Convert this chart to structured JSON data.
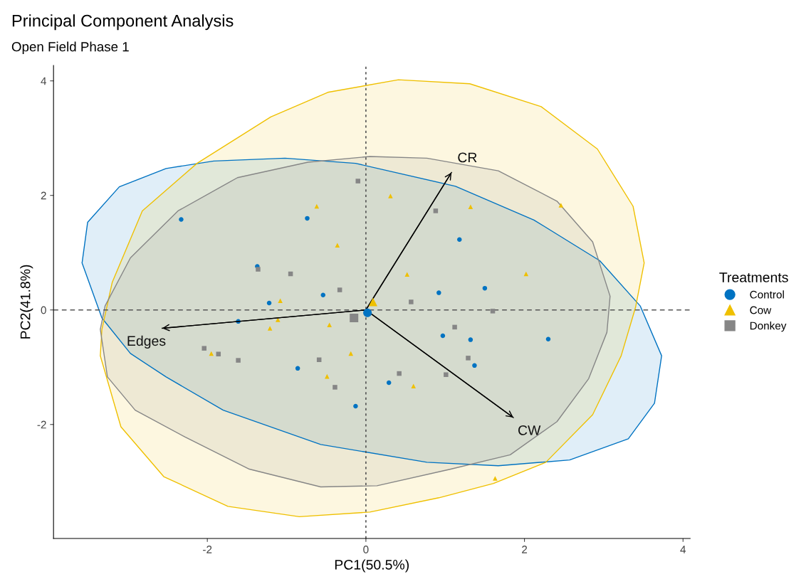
{
  "chart_data": {
    "type": "scatter",
    "title": "Principal Component Analysis",
    "subtitle": "Open Field Phase 1",
    "xlabel": "PC1(50.5%)",
    "ylabel": "PC2(41.8%)",
    "legend_title": "Treatments",
    "legend": "right",
    "grid": false,
    "xlim": [
      -3.94,
      4.09
    ],
    "xticks": [
      -2,
      0,
      2,
      4
    ],
    "ylim": [
      -3.99,
      4.27
    ],
    "yticks": [
      -2,
      0,
      2,
      4
    ],
    "ref_lines": [
      {
        "axis": "x",
        "value": 0,
        "line_style": "dotted",
        "color": "#555555"
      },
      {
        "axis": "y",
        "value": 0,
        "line_style": "dashed",
        "color": "#555555"
      }
    ],
    "series": [
      {
        "type": "area",
        "color": "#0073c2",
        "x": [
          -3.58,
          -3.51,
          -3.11,
          -2.52,
          -1.92,
          -1.02,
          -0.13,
          1.13,
          2.12,
          2.95,
          3.46,
          3.73,
          3.64,
          3.31,
          2.57,
          1.67,
          0.77,
          -0.57,
          -1.8,
          -2.52,
          -2.97,
          -3.33,
          -3.58
        ],
        "values": [
          0.82,
          1.53,
          2.15,
          2.47,
          2.6,
          2.65,
          2.56,
          2.16,
          1.57,
          0.86,
          0.07,
          -0.8,
          -1.63,
          -2.25,
          -2.62,
          -2.72,
          -2.66,
          -2.35,
          -1.75,
          -1.17,
          -0.76,
          -0.14,
          0.82
        ]
      },
      {
        "type": "area",
        "color": "#efc000",
        "x": [
          -3.35,
          -3.33,
          -3.2,
          -2.82,
          -2.13,
          -1.2,
          -0.48,
          0.41,
          1.31,
          2.21,
          2.92,
          3.37,
          3.51,
          3.4,
          3.22,
          2.86,
          2.27,
          1.61,
          0.92,
          0.05,
          -0.84,
          -1.74,
          -2.55,
          -3.09,
          -3.35
        ],
        "values": [
          -0.8,
          -0.34,
          0.48,
          1.73,
          2.56,
          3.37,
          3.8,
          4.02,
          3.95,
          3.55,
          2.81,
          1.81,
          0.82,
          0.04,
          -0.8,
          -1.83,
          -2.66,
          -3.03,
          -3.28,
          -3.53,
          -3.61,
          -3.43,
          -2.91,
          -2.04,
          -0.8
        ]
      },
      {
        "type": "area",
        "color": "#868686",
        "x": [
          -3.35,
          -3.29,
          -2.97,
          -2.37,
          -1.62,
          -0.73,
          0.05,
          0.77,
          1.67,
          2.41,
          2.86,
          3.08,
          3.04,
          2.81,
          2.41,
          1.82,
          1.07,
          0.14,
          -0.57,
          -1.47,
          -2.28,
          -2.91,
          -3.26,
          -3.35
        ],
        "values": [
          -0.34,
          0.07,
          0.91,
          1.73,
          2.31,
          2.58,
          2.68,
          2.65,
          2.43,
          1.9,
          1.19,
          0.24,
          -0.39,
          -1.2,
          -1.95,
          -2.53,
          -2.78,
          -3.07,
          -3.09,
          -2.78,
          -2.22,
          -1.75,
          -1.17,
          -0.34
        ]
      },
      {
        "name": "Control",
        "color": "#0073c2",
        "marker": "circle",
        "x": [
          -2.33,
          -0.74,
          -1.37,
          -1.22,
          -0.54,
          -1.61,
          -0.86,
          -0.13,
          0.29,
          1.18,
          0.92,
          1.5,
          0.97,
          1.32,
          1.37,
          2.3
        ],
        "values": [
          1.58,
          1.6,
          0.76,
          0.12,
          0.26,
          -0.2,
          -1.02,
          -1.68,
          -1.27,
          1.23,
          0.3,
          0.38,
          -0.45,
          -0.52,
          -0.97,
          -0.51
        ]
      },
      {
        "name": "Cow",
        "color": "#efc000",
        "marker": "triangle",
        "x": [
          -0.62,
          -0.36,
          0.31,
          1.32,
          2.46,
          0.52,
          2.02,
          -1.08,
          -1.11,
          -1.21,
          -0.46,
          -1.95,
          -0.19,
          -0.49,
          0.6,
          1.63
        ],
        "values": [
          1.81,
          1.13,
          1.99,
          1.8,
          1.83,
          0.62,
          0.63,
          0.16,
          -0.17,
          -0.32,
          -0.26,
          -0.76,
          -0.76,
          -1.16,
          -1.33,
          -2.94
        ]
      },
      {
        "name": "Donkey",
        "color": "#868686",
        "marker": "square",
        "x": [
          -0.1,
          -1.36,
          -0.95,
          -0.33,
          -2.04,
          -1.86,
          -1.61,
          -0.59,
          -0.39,
          0.88,
          0.57,
          1.12,
          1.6,
          1.29,
          0.42,
          1.01
        ],
        "values": [
          2.25,
          0.71,
          0.63,
          0.35,
          -0.67,
          -0.77,
          -0.88,
          -0.87,
          -1.35,
          1.73,
          0.14,
          -0.3,
          -0.02,
          -0.84,
          -1.11,
          -1.13
        ]
      },
      {
        "type": "line",
        "name": "Edges",
        "color": "#000000",
        "x": [
          0,
          -2.57
        ],
        "values": [
          0,
          -0.32
        ]
      },
      {
        "type": "line",
        "name": "CR",
        "color": "#000000",
        "x": [
          0,
          1.08
        ],
        "values": [
          0,
          2.4
        ]
      },
      {
        "type": "line",
        "name": "CW",
        "color": "#000000",
        "x": [
          0,
          1.86
        ],
        "values": [
          0,
          -1.88
        ]
      },
      {
        "color": "#868686",
        "marker": "square",
        "x": [
          -0.15
        ],
        "values": [
          -0.14
        ]
      },
      {
        "color": "#efc000",
        "marker": "triangle",
        "x": [
          0.09
        ],
        "values": [
          0.14
        ]
      },
      {
        "color": "#0073c2",
        "marker": "circle",
        "x": [
          0.02
        ],
        "values": [
          -0.05
        ]
      }
    ]
  }
}
